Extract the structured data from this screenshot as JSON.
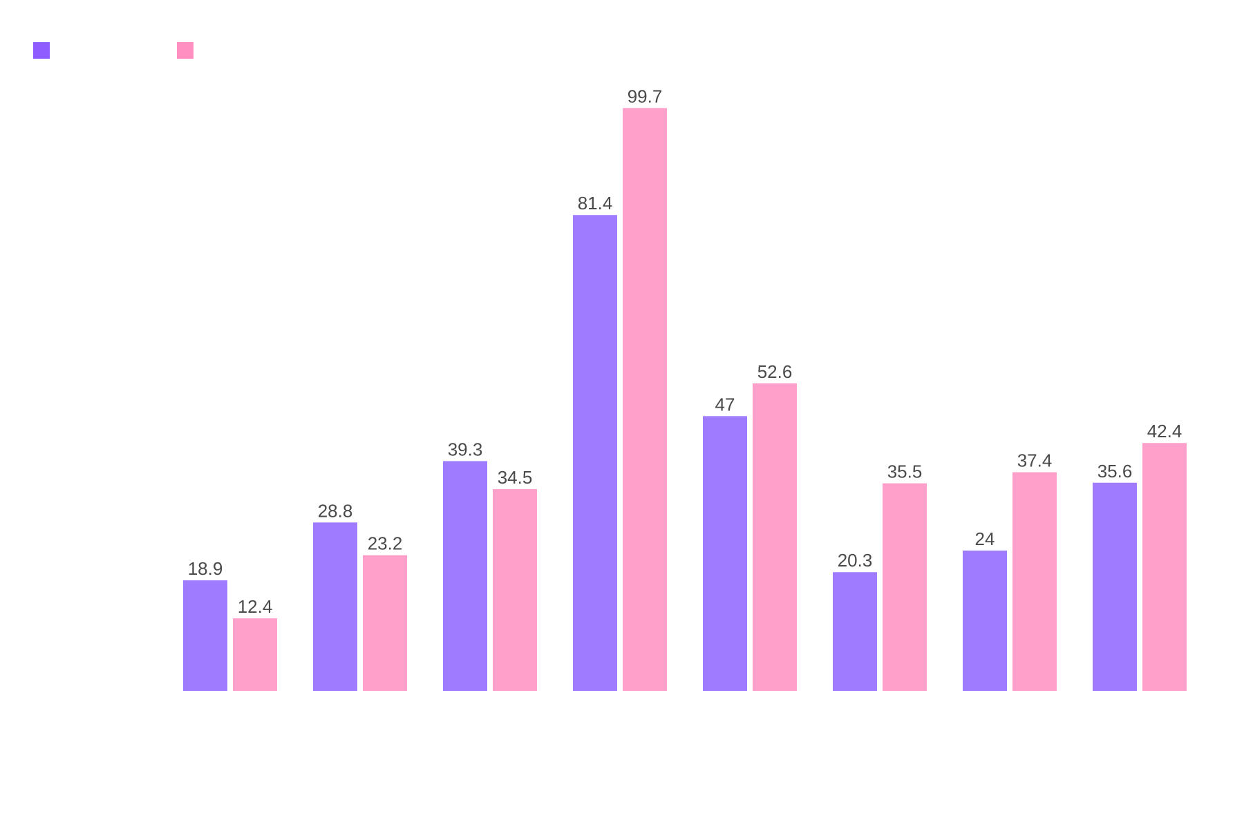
{
  "chart_data": {
    "type": "bar",
    "title": "",
    "xlabel": "",
    "ylabel": "",
    "categories": [
      "",
      "",
      "",
      "",
      "",
      "",
      "",
      ""
    ],
    "ylim": [
      0,
      104
    ],
    "grid": false,
    "legend": "top-left",
    "series": [
      {
        "color": "#9e7bff",
        "legend_swatch_color": "#8e5cff",
        "values": [
          18.9,
          28.8,
          39.3,
          81.4,
          47,
          20.3,
          24,
          35.6
        ]
      },
      {
        "color": "#ffa0cb",
        "legend_swatch_color": "#ff8fc0",
        "values": [
          12.4,
          23.2,
          34.5,
          99.7,
          52.6,
          35.5,
          37.4,
          42.4
        ]
      }
    ]
  }
}
